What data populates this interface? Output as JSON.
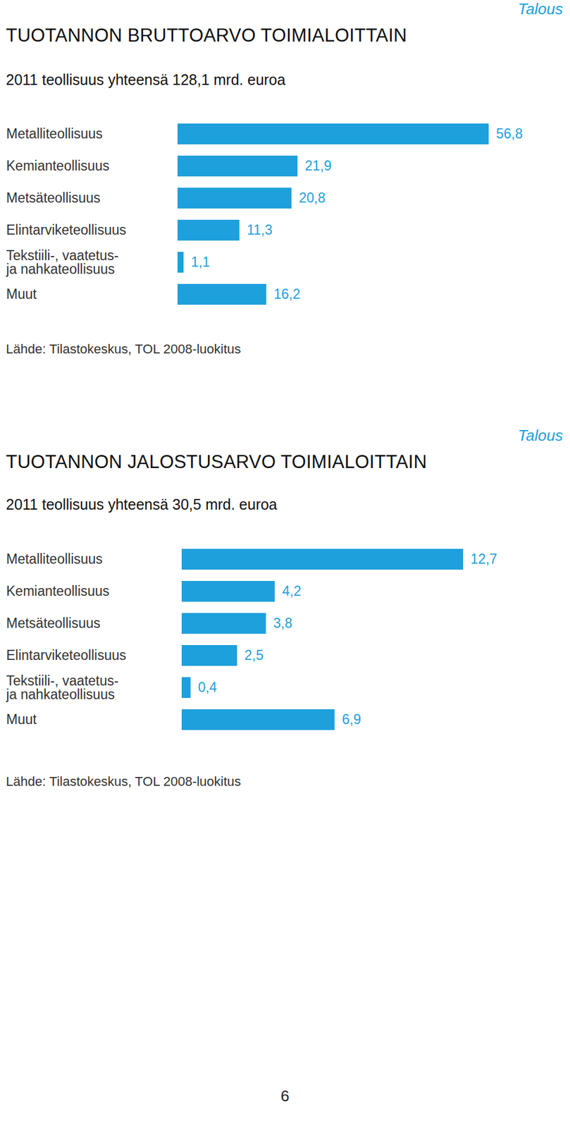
{
  "chart_data": [
    {
      "type": "bar",
      "orientation": "horizontal",
      "annotations": [
        "Talous"
      ],
      "title": "TUOTANNON BRUTTOARVO TOIMIALOITTAIN",
      "subtitle": "2011 teollisuus yhteensä 128,1 mrd. euroa",
      "caption": "Lähde: Tilastokeskus, TOL 2008-luokitus",
      "categories": [
        "Metalliteollisuus",
        "Kemianteollisuus",
        "Metsäteollisuus",
        "Elintarviketeollisuus",
        "Tekstiili-, vaatetus-\nja nahkateollisuus",
        "Muut"
      ],
      "values": [
        56.8,
        21.9,
        20.8,
        11.3,
        1.1,
        16.2
      ],
      "value_labels": [
        "56,8",
        "21,9",
        "20,8",
        "11,3",
        "1,1",
        "16,2"
      ],
      "color": "#1ea0dc",
      "xlim": [
        0,
        56.8
      ],
      "xticks": [],
      "data_labels": true,
      "tick_labels": "y",
      "grid": false
    },
    {
      "type": "bar",
      "orientation": "horizontal",
      "annotations": [
        "Talous"
      ],
      "title": "TUOTANNON JALOSTUSARVO TOIMIALOITTAIN",
      "subtitle": "2011 teollisuus yhteensä 30,5 mrd. euroa",
      "caption": "Lähde: Tilastokeskus, TOL 2008-luokitus",
      "categories": [
        "Metalliteollisuus",
        "Kemianteollisuus",
        "Metsäteollisuus",
        "Elintarviketeollisuus",
        "Tekstiili-, vaatetus-\nja nahkateollisuus",
        "Muut"
      ],
      "values": [
        12.7,
        4.2,
        3.8,
        2.5,
        0.4,
        6.9
      ],
      "value_labels": [
        "12,7",
        "4,2",
        "3,8",
        "2,5",
        "0,4",
        "6,9"
      ],
      "color": "#1ea0dc",
      "xlim": [
        0,
        12.7
      ],
      "xticks": [],
      "data_labels": true,
      "tick_labels": "y",
      "grid": false
    }
  ],
  "footer": "6"
}
